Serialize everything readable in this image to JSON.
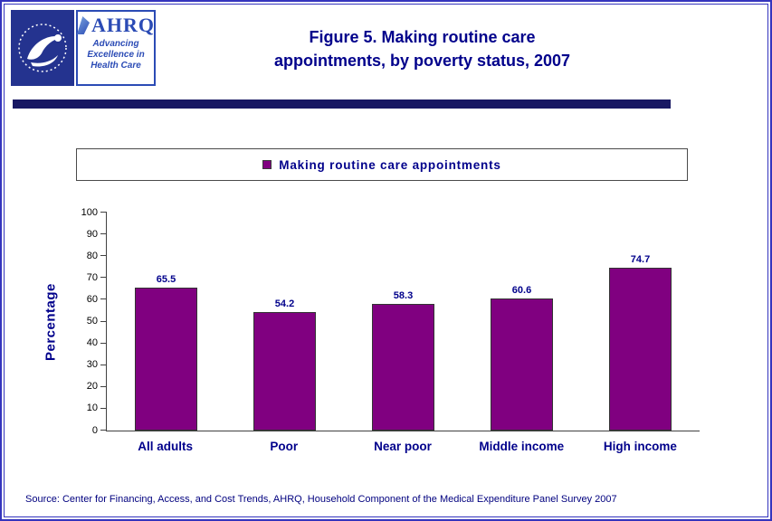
{
  "header": {
    "title_line1": "Figure 5. Making routine care",
    "title_line2": "appointments, by poverty status, 2007",
    "ahrq_acronym": "AHRQ",
    "ahrq_tagline": "Advancing Excellence in Health Care"
  },
  "legend": {
    "label": "Making routine care appointments",
    "swatch_color": "#800080"
  },
  "chart_data": {
    "type": "bar",
    "title": "Figure 5. Making routine care appointments, by poverty status, 2007",
    "categories": [
      "All adults",
      "Poor",
      "Near poor",
      "Middle income",
      "High income"
    ],
    "series": [
      {
        "name": "Making routine care appointments",
        "values": [
          65.5,
          54.2,
          58.3,
          60.6,
          74.7
        ]
      }
    ],
    "xlabel": "",
    "ylabel": "Percentage",
    "ylim": [
      0,
      100
    ],
    "y_ticks": [
      0,
      10,
      20,
      30,
      40,
      50,
      60,
      70,
      80,
      90,
      100
    ],
    "bar_color": "#800080",
    "grid": false,
    "legend_position": "top"
  },
  "source": "Source: Center for Financing, Access, and Cost Trends, AHRQ, Household Component of the Medical Expenditure Panel Survey 2007"
}
